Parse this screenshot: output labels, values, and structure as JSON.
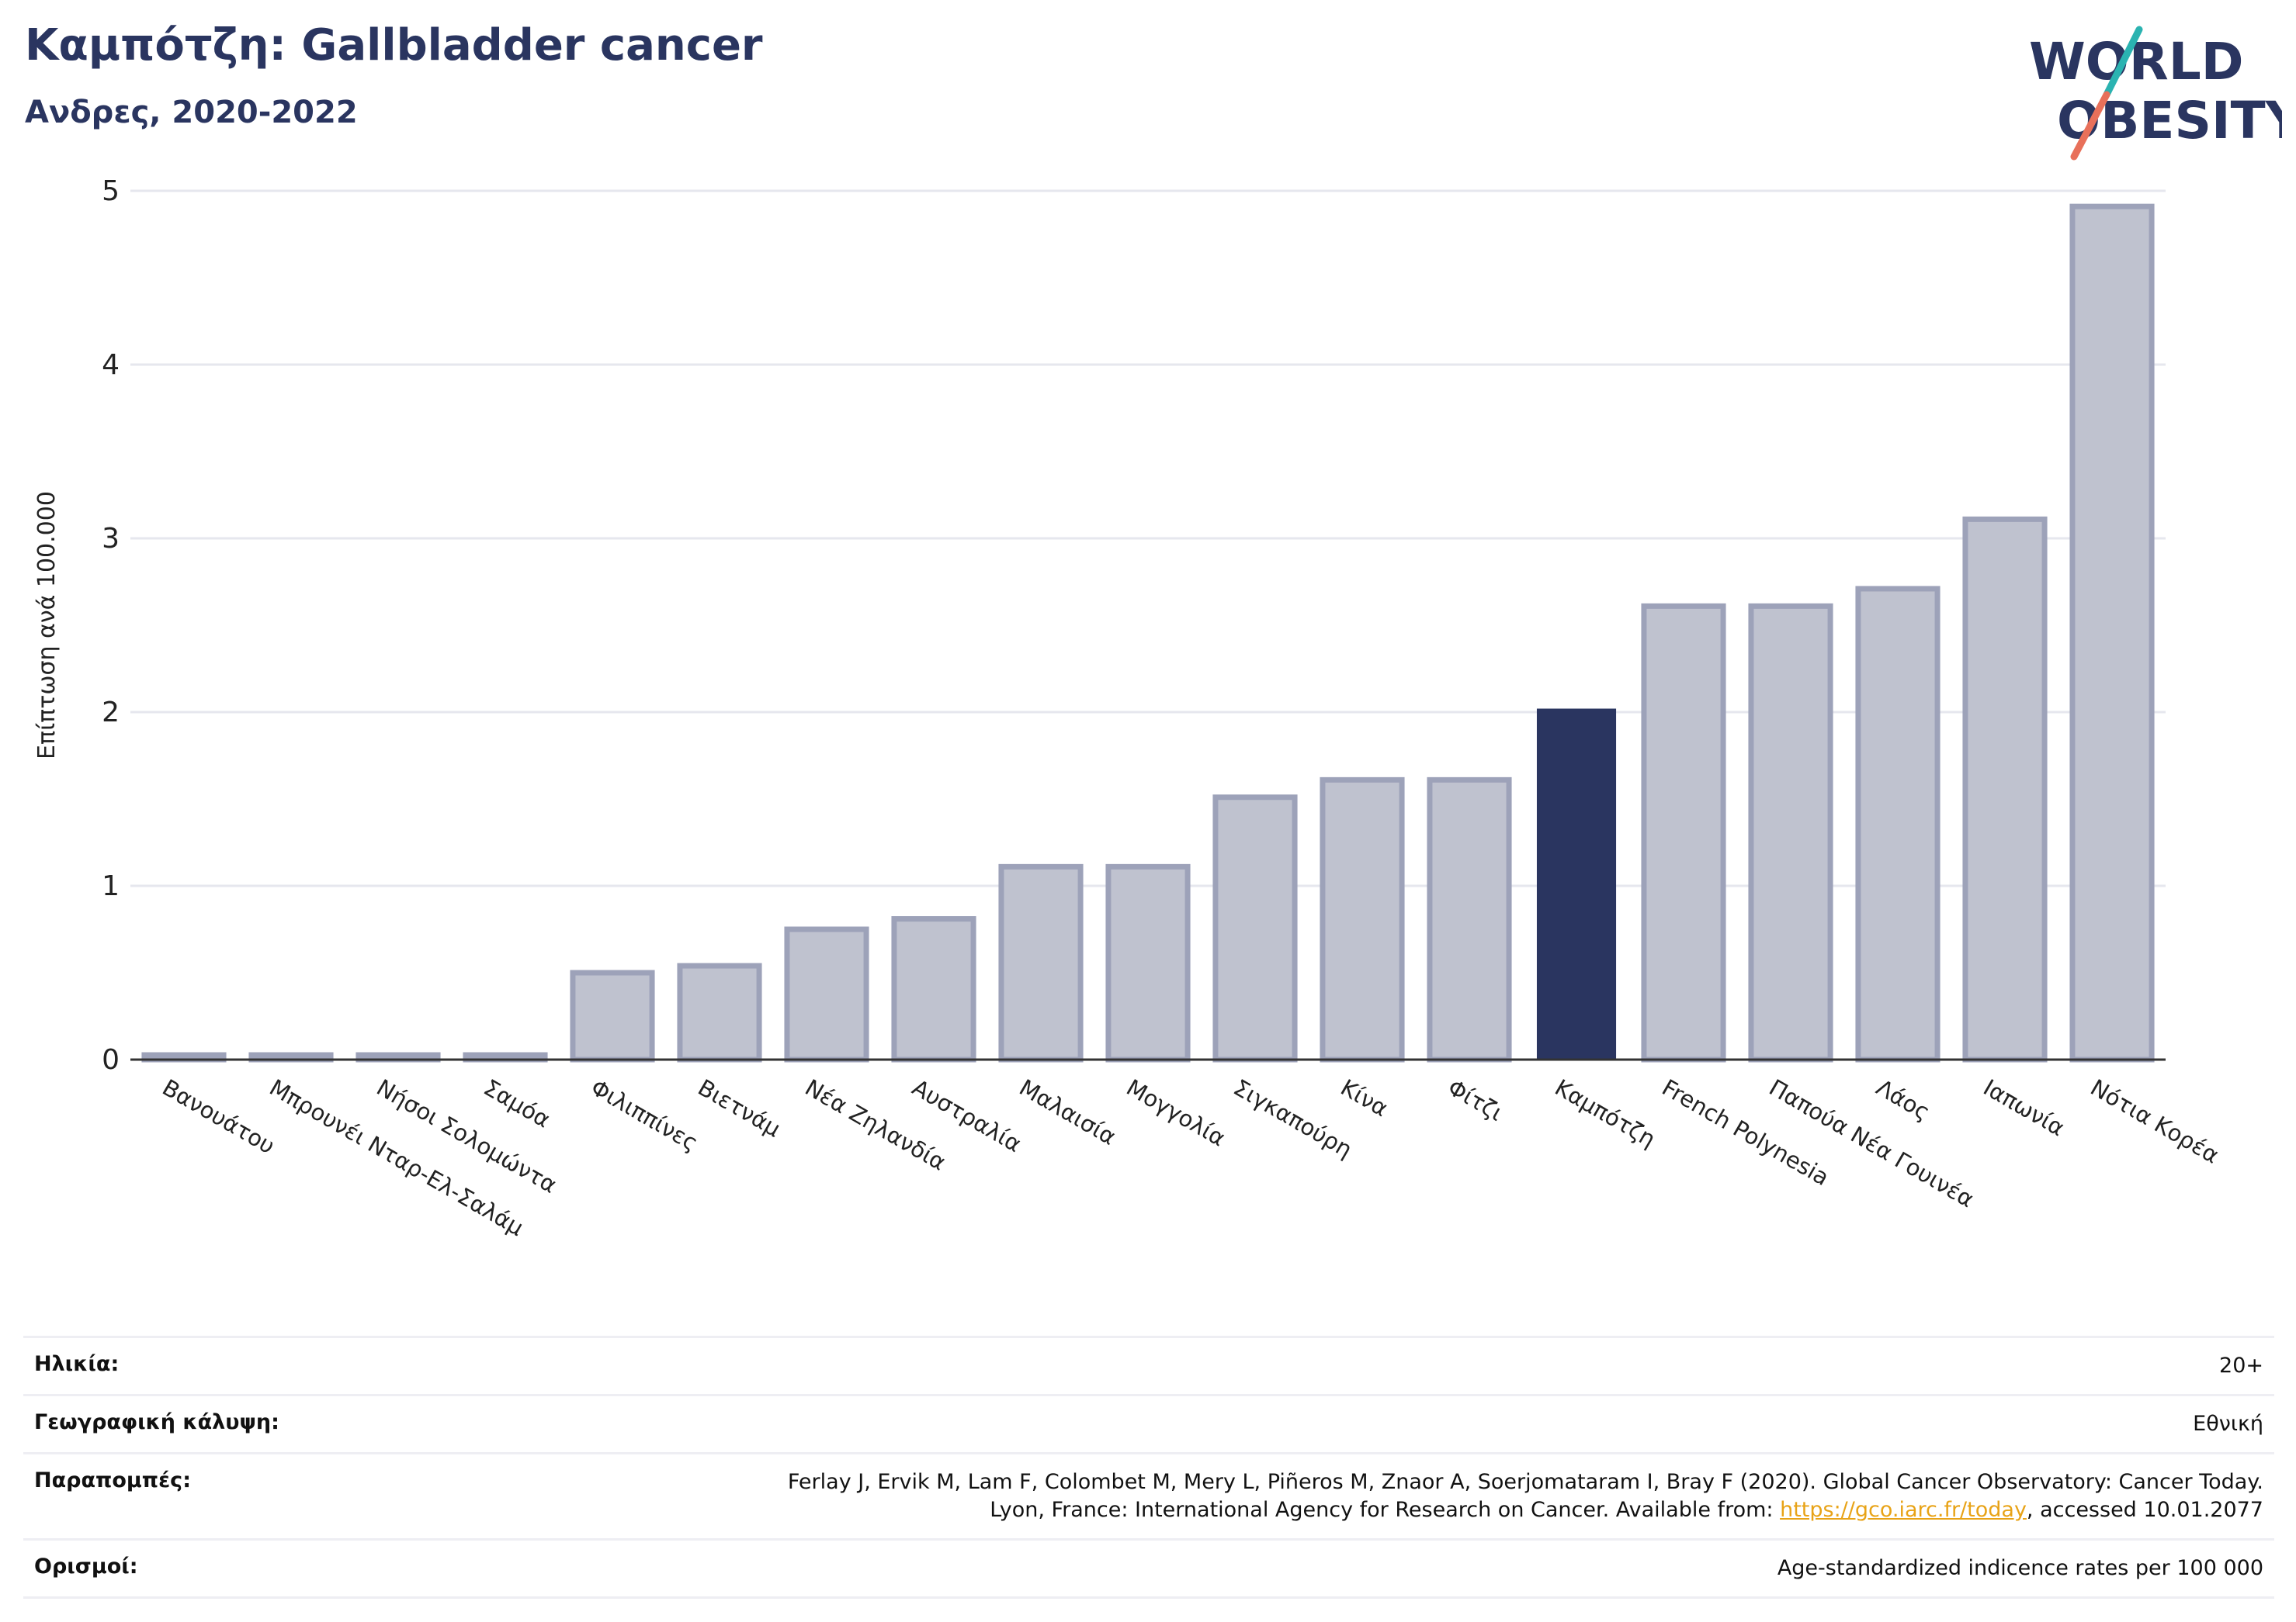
{
  "header": {
    "title": "Καμπότζη: Gallbladder cancer",
    "subtitle": "Ανδρες, 2020-2022"
  },
  "logo": {
    "line1": "WORLD",
    "line2": "OBESITY",
    "accent_teal": "#2bb3b1",
    "accent_coral": "#e8705a"
  },
  "colors": {
    "highlight": "#2a3560",
    "bar_fill": "#bfc2cf",
    "bar_stroke": "#9da2b9"
  },
  "chart_data": {
    "type": "bar",
    "title": "Καμπότζη: Gallbladder cancer",
    "subtitle": "Ανδρες, 2020-2022",
    "xlabel": "",
    "ylabel": "Επίπτωση ανά 100.000",
    "ylim": [
      0,
      5
    ],
    "yticks": [
      0,
      1,
      2,
      3,
      4,
      5
    ],
    "grid": true,
    "highlight": "Καμπότζη",
    "categories": [
      "Βανουάτου",
      "Μπρουνέι Νταρ-Ελ-Σαλάμ",
      "Νήσοι Σολομώντα",
      "Σαμόα",
      "Φιλιππίνες",
      "Βιετνάμ",
      "Νέα Ζηλανδία",
      "Αυστραλία",
      "Μαλαισία",
      "Μογγολία",
      "Σιγκαπούρη",
      "Κίνα",
      "Φίτζι",
      "Καμπότζη",
      "French Polynesia",
      "Παπούα Νέα Γουινέα",
      "Λάος",
      "Ιαπωνία",
      "Νότια Κορέα"
    ],
    "values": [
      0,
      0,
      0,
      0,
      0.5,
      0.54,
      0.75,
      0.81,
      1.11,
      1.11,
      1.51,
      1.61,
      1.61,
      2.02,
      2.61,
      2.61,
      2.71,
      3.11,
      4.91
    ]
  },
  "info": [
    {
      "label": "Ηλικία:",
      "value": "20+"
    },
    {
      "label": "Γεωγραφική κάλυψη:",
      "value": "Εθνική"
    },
    {
      "label": "Παραπομπές:",
      "value_line1": "Ferlay J, Ervik M, Lam F, Colombet M, Mery L, Piñeros M, Znaor A, Soerjomataram I, Bray F (2020). Global Cancer Observatory: Cancer Today.",
      "value_line2_pre": "Lyon, France: International Agency for Research on Cancer. Available from: ",
      "link": "https://gco.iarc.fr/today",
      "value_line2_post": ", accessed 10.01.2077"
    },
    {
      "label": "Ορισμοί:",
      "value": "Age-standardized indicence rates per 100 000"
    }
  ]
}
